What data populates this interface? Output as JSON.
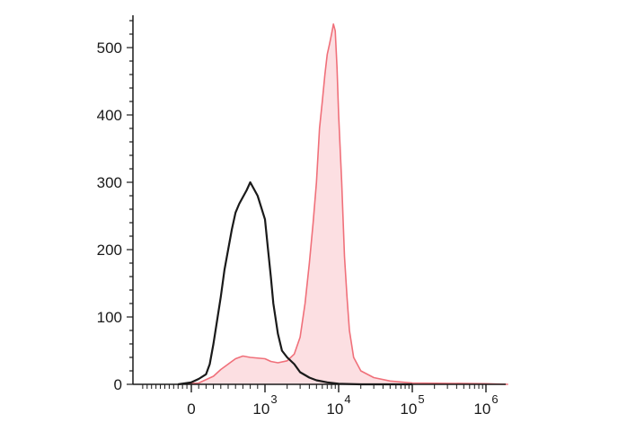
{
  "chart_data": {
    "type": "area",
    "title": "",
    "xlabel": "",
    "ylabel": "",
    "xscale": "biexponential",
    "ylim": [
      0,
      540
    ],
    "grid": false,
    "legend": "none",
    "y_ticks": [
      {
        "value": 0,
        "label": "0"
      },
      {
        "value": 100,
        "label": "100"
      },
      {
        "value": 200,
        "label": "200"
      },
      {
        "value": 300,
        "label": "300"
      },
      {
        "value": 400,
        "label": "400"
      },
      {
        "value": 500,
        "label": "500"
      }
    ],
    "x_ticks": [
      {
        "value": 0,
        "base": "0",
        "exp": ""
      },
      {
        "value": 1000,
        "base": "10",
        "exp": "3"
      },
      {
        "value": 10000,
        "base": "10",
        "exp": "4"
      },
      {
        "value": 100000,
        "base": "10",
        "exp": "5"
      },
      {
        "value": 1000000,
        "base": "10",
        "exp": "6"
      }
    ],
    "series": [
      {
        "style": "outline",
        "color": "#1a1a1a",
        "points": [
          [
            -300,
            0
          ],
          [
            0,
            3
          ],
          [
            100,
            8
          ],
          [
            200,
            15
          ],
          [
            250,
            30
          ],
          [
            300,
            60
          ],
          [
            350,
            95
          ],
          [
            400,
            130
          ],
          [
            450,
            170
          ],
          [
            500,
            200
          ],
          [
            550,
            230
          ],
          [
            600,
            255
          ],
          [
            650,
            268
          ],
          [
            700,
            278
          ],
          [
            750,
            288
          ],
          [
            800,
            300
          ],
          [
            850,
            290
          ],
          [
            900,
            280
          ],
          [
            1000,
            245
          ],
          [
            1100,
            200
          ],
          [
            1200,
            160
          ],
          [
            1300,
            120
          ],
          [
            1500,
            75
          ],
          [
            1700,
            50
          ],
          [
            2000,
            40
          ],
          [
            2500,
            30
          ],
          [
            3000,
            18
          ],
          [
            4000,
            10
          ],
          [
            5000,
            6
          ],
          [
            7000,
            3
          ],
          [
            10000,
            1
          ],
          [
            20000,
            0
          ],
          [
            100000,
            0
          ]
        ]
      },
      {
        "style": "filled",
        "color": "#f0707a",
        "fill": "#fcdfe2",
        "points": [
          [
            -300,
            0
          ],
          [
            100,
            2
          ],
          [
            300,
            12
          ],
          [
            400,
            22
          ],
          [
            500,
            30
          ],
          [
            600,
            38
          ],
          [
            700,
            42
          ],
          [
            800,
            40
          ],
          [
            1000,
            38
          ],
          [
            1200,
            34
          ],
          [
            1500,
            32
          ],
          [
            2000,
            35
          ],
          [
            2500,
            45
          ],
          [
            3000,
            70
          ],
          [
            3500,
            120
          ],
          [
            4000,
            180
          ],
          [
            4500,
            240
          ],
          [
            5000,
            300
          ],
          [
            5500,
            380
          ],
          [
            6000,
            420
          ],
          [
            6500,
            460
          ],
          [
            7000,
            490
          ],
          [
            7500,
            505
          ],
          [
            8000,
            520
          ],
          [
            8500,
            535
          ],
          [
            9000,
            525
          ],
          [
            9500,
            470
          ],
          [
            10000,
            400
          ],
          [
            11000,
            300
          ],
          [
            12000,
            190
          ],
          [
            13000,
            130
          ],
          [
            14000,
            80
          ],
          [
            16000,
            40
          ],
          [
            20000,
            20
          ],
          [
            30000,
            10
          ],
          [
            50000,
            5
          ],
          [
            100000,
            2
          ],
          [
            1000000,
            1
          ],
          [
            2000000,
            0
          ]
        ]
      }
    ]
  }
}
